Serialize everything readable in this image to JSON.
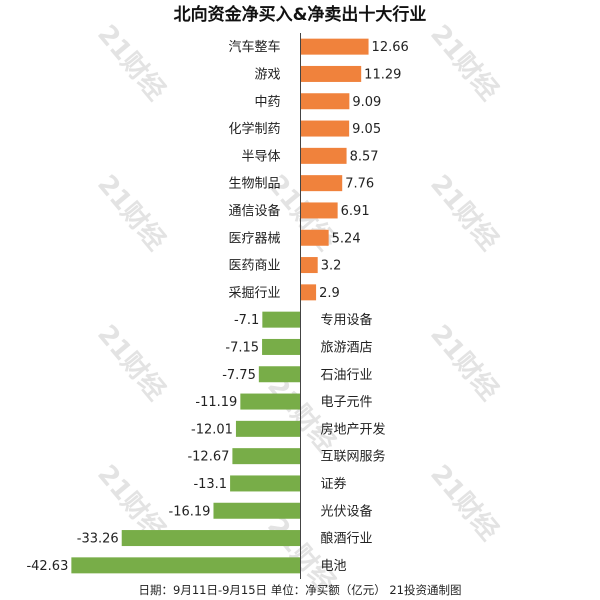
{
  "watermark": "21财经",
  "chart_data": {
    "type": "bar",
    "orientation": "horizontal",
    "title": "北向资金净买入&净卖出十大行业",
    "categories": [
      "汽车整车",
      "游戏",
      "中药",
      "化学制药",
      "半导体",
      "生物制品",
      "通信设备",
      "医疗器械",
      "医药商业",
      "采掘行业",
      "专用设备",
      "旅游酒店",
      "石油行业",
      "电子元件",
      "房地产开发",
      "互联网服务",
      "证券",
      "光伏设备",
      "酿酒行业",
      "电池"
    ],
    "values": [
      12.66,
      11.29,
      9.09,
      9.05,
      8.57,
      7.76,
      6.91,
      5.24,
      3.2,
      2.9,
      -7.1,
      -7.15,
      -7.75,
      -11.19,
      -12.01,
      -12.67,
      -13.1,
      -16.19,
      -33.26,
      -42.63
    ],
    "value_labels": [
      "12.66",
      "11.29",
      "9.09",
      "9.05",
      "8.57",
      "7.76",
      "6.91",
      "5.24",
      "3.2",
      "2.9",
      "-7.1",
      "-7.15",
      "-7.75",
      "-11.19",
      "-12.01",
      "-12.67",
      "-13.1",
      "-16.19",
      "-33.26",
      "-42.63"
    ],
    "colors": {
      "positive": "#f0823c",
      "negative": "#78ad48",
      "axis": "#444444"
    },
    "footer": "日期：9月11日-9月15日  单位：净买额（亿元）  21投资通制图",
    "legend": "none",
    "grid": false
  }
}
